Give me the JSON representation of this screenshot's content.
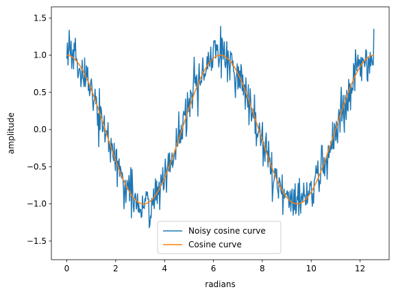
{
  "chart_data": {
    "type": "line",
    "title": "",
    "xlabel": "radians",
    "ylabel": "amplitude",
    "xlim": [
      -0.63,
      13.19
    ],
    "ylim": [
      -1.75,
      1.65
    ],
    "xticks": [
      0,
      2,
      4,
      6,
      8,
      10,
      12
    ],
    "yticks": [
      -1.5,
      -1.0,
      -0.5,
      0.0,
      0.5,
      1.0,
      1.5
    ],
    "xtick_labels": [
      "0",
      "2",
      "4",
      "6",
      "8",
      "10",
      "12"
    ],
    "ytick_labels": [
      "−1.5",
      "−1.0",
      "−0.5",
      "0.0",
      "0.5",
      "1.0",
      "1.5"
    ],
    "grid": false,
    "legend_position": "bottom-center",
    "x_range": [
      0,
      12.566
    ],
    "series": [
      {
        "name": "Noisy cosine curve",
        "color": "#1f77b4",
        "function": "cos(x) + noise",
        "noise_sigma": 0.15,
        "points": 500
      },
      {
        "name": "Cosine curve",
        "color": "#ff7f0e",
        "function": "cos(x)",
        "points": 500
      }
    ]
  }
}
